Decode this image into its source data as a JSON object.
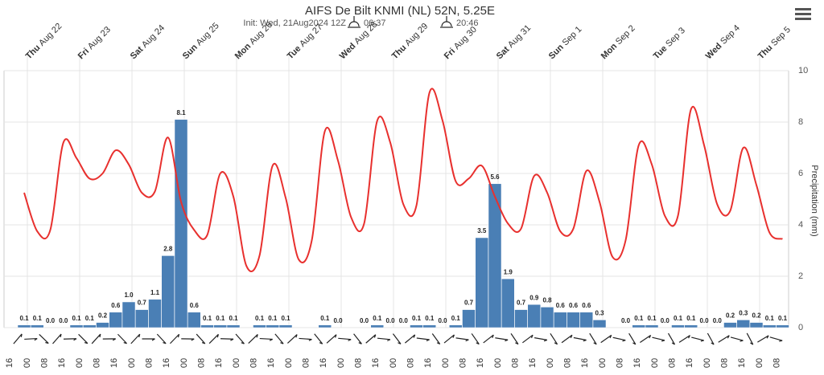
{
  "chart_data": {
    "type": "bar",
    "title": "AIFS De Bilt KNMI (NL) 52N, 5.25E",
    "subtitle": "Init: Wed, 21Aug2024 12Z",
    "sunrise": "06:37",
    "sunset": "20:46",
    "y_axis_label": "Precipitation (mm)",
    "ylim": [
      0,
      10
    ],
    "yticks": [
      0,
      2,
      4,
      6,
      8,
      10
    ],
    "grid": true,
    "days": [
      {
        "weekday": "Thu",
        "date": "Aug 22"
      },
      {
        "weekday": "Fri",
        "date": "Aug 23"
      },
      {
        "weekday": "Sat",
        "date": "Aug 24"
      },
      {
        "weekday": "Sun",
        "date": "Aug 25"
      },
      {
        "weekday": "Mon",
        "date": "Aug 26"
      },
      {
        "weekday": "Tue",
        "date": "Aug 27"
      },
      {
        "weekday": "Wed",
        "date": "Aug 28"
      },
      {
        "weekday": "Thu",
        "date": "Aug 29"
      },
      {
        "weekday": "Fri",
        "date": "Aug 30"
      },
      {
        "weekday": "Sat",
        "date": "Aug 31"
      },
      {
        "weekday": "Sun",
        "date": "Sep 1"
      },
      {
        "weekday": "Mon",
        "date": "Sep 2"
      },
      {
        "weekday": "Tue",
        "date": "Sep 3"
      },
      {
        "weekday": "Wed",
        "date": "Sep 4"
      },
      {
        "weekday": "Thu",
        "date": "Sep 5"
      }
    ],
    "hour_labels": [
      "16",
      "00",
      "08",
      "16",
      "00",
      "08",
      "16",
      "00",
      "08",
      "16",
      "00",
      "08",
      "16",
      "00",
      "08",
      "16",
      "00",
      "08",
      "16",
      "00",
      "08",
      "16",
      "00",
      "08",
      "16",
      "00",
      "08",
      "16",
      "00",
      "08",
      "16",
      "00",
      "08",
      "16",
      "00",
      "08",
      "16",
      "00",
      "08",
      "16",
      "00",
      "08",
      "16",
      "00",
      "08"
    ],
    "series": [
      {
        "type": "bar",
        "color": "#4a7fb5",
        "values": [
          0.1,
          0.1,
          0.0,
          0.0,
          0.1,
          0.1,
          0.2,
          0.6,
          1.0,
          0.7,
          1.1,
          2.8,
          8.1,
          0.6,
          0.1,
          0.1,
          0.1,
          null,
          0.1,
          0.1,
          0.1,
          null,
          null,
          0.1,
          0.0,
          null,
          0.0,
          0.1,
          0.0,
          0.0,
          0.1,
          0.1,
          0.0,
          0.1,
          0.7,
          3.5,
          5.6,
          1.9,
          0.7,
          0.9,
          0.8,
          0.6,
          0.6,
          0.6,
          0.3,
          null,
          0.0,
          0.1,
          0.1,
          0.0,
          0.1,
          0.1,
          0.0,
          0.0,
          0.2,
          0.3,
          0.2,
          0.1,
          0.1
        ],
        "value_labels": [
          "0.1",
          "0.1",
          "0.0",
          "0.0",
          "0.1",
          "0.1",
          "0.2",
          "0.6",
          "1.0",
          "0.7",
          "1.1",
          "2.8",
          "8.1",
          "0.6",
          "0.1",
          "0.1",
          "0.1",
          null,
          "0.1",
          "0.1",
          "0.1",
          null,
          null,
          "0.1",
          "0.0",
          null,
          "0.0",
          "0.1",
          "0.0",
          "0.0",
          "0.1",
          "0.1",
          "0.0",
          "0.1",
          "0.7",
          "3.5",
          "5.6",
          "1.9",
          "0.7",
          "0.9",
          "0.8",
          "0.6",
          "0.6",
          "0.6",
          "0.3",
          null,
          "0.0",
          "0.1",
          "0.1",
          "0.0",
          "0.1",
          "0.1",
          "0.0",
          "0.0",
          "0.2",
          "0.3",
          "0.2",
          "0.1",
          "0.1"
        ]
      },
      {
        "type": "line",
        "color": "#e8302e",
        "values": [
          5.25,
          3.75,
          3.8,
          7.2,
          6.6,
          5.8,
          6.0,
          6.9,
          6.35,
          5.25,
          5.3,
          7.4,
          4.9,
          3.8,
          3.6,
          6.0,
          5.1,
          2.4,
          2.8,
          6.3,
          5.05,
          2.65,
          3.4,
          7.65,
          6.5,
          4.3,
          4.05,
          8.05,
          7.2,
          4.8,
          4.75,
          9.15,
          8.05,
          5.7,
          5.8,
          6.3,
          5.1,
          4.05,
          3.85,
          5.9,
          5.25,
          3.75,
          3.85,
          6.1,
          4.9,
          2.75,
          3.4,
          7.1,
          6.35,
          4.35,
          4.35,
          8.5,
          7.1,
          4.8,
          4.55,
          7.0,
          5.55,
          3.7,
          3.45
        ]
      }
    ]
  }
}
